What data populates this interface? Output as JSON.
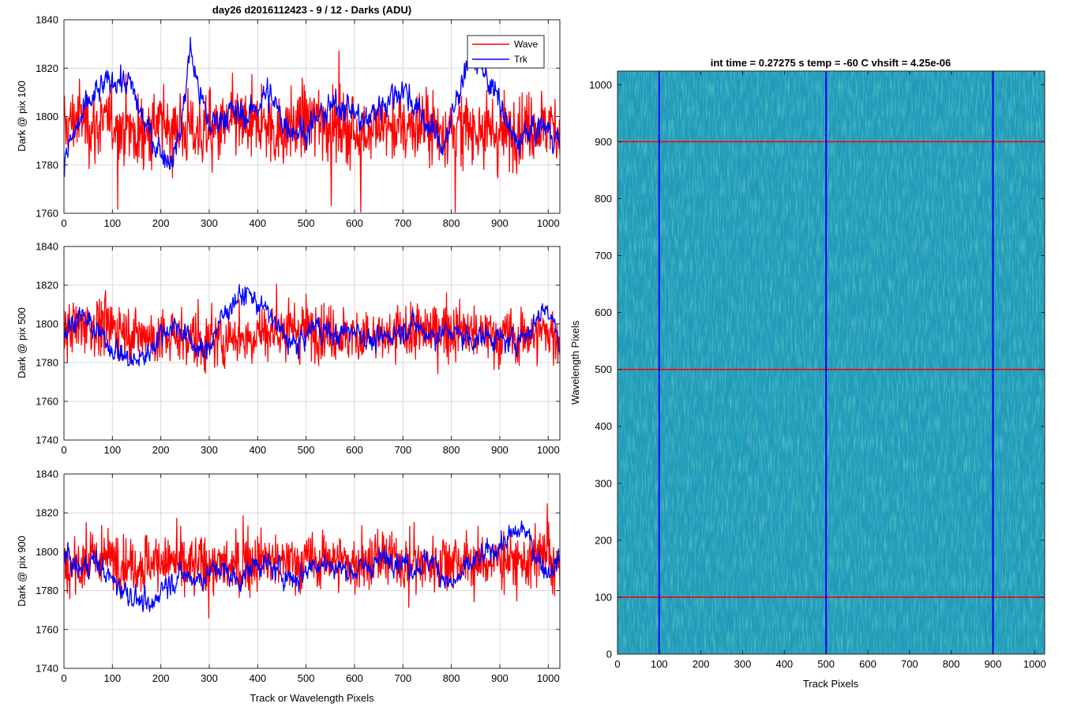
{
  "figure": {
    "title": "day26 d2016112423 - 9 / 12 - Darks (ADU)",
    "shared_xlabel": "Track or Wavelength Pixels",
    "image_title": "int time = 0.27275 s    temp = -60 C    vhsift = 4.25e-06",
    "image_xlabel": "Track Pixels",
    "image_ylabel": "Wavelength Pixels"
  },
  "legend": {
    "wave": "Wave",
    "trk": "Trk"
  },
  "colors": {
    "wave": "#ff0000",
    "trk": "#0000ff",
    "grid": "#d9d9d9",
    "axis": "#262626",
    "map_base": "#1f9bb8",
    "map_high": "#5fc27a",
    "map_low": "#2a78c8"
  },
  "chart_data": [
    {
      "type": "line",
      "ylabel": "Dark @ pix 100",
      "xlim": [
        0,
        1024
      ],
      "ylim": [
        1760,
        1840
      ],
      "xticks": [
        0,
        100,
        200,
        300,
        400,
        500,
        600,
        700,
        800,
        900,
        1000
      ],
      "yticks": [
        1760,
        1780,
        1800,
        1820,
        1840
      ],
      "grid": true,
      "legend": "top-right",
      "series": [
        {
          "name": "Wave",
          "color": "#ff0000",
          "x": [
            0,
            30,
            60,
            100,
            150,
            200,
            250,
            300,
            350,
            400,
            450,
            500,
            550,
            600,
            650,
            700,
            750,
            800,
            850,
            900,
            950,
            1000,
            1024
          ],
          "y": [
            1795,
            1800,
            1796,
            1798,
            1792,
            1797,
            1795,
            1793,
            1797,
            1796,
            1794,
            1799,
            1797,
            1793,
            1796,
            1795,
            1797,
            1794,
            1796,
            1793,
            1795,
            1797,
            1794
          ]
        },
        {
          "name": "Trk",
          "color": "#0000ff",
          "x": [
            0,
            20,
            50,
            80,
            110,
            140,
            160,
            190,
            220,
            240,
            260,
            280,
            300,
            340,
            380,
            420,
            460,
            500,
            540,
            580,
            620,
            660,
            700,
            740,
            780,
            800,
            820,
            840,
            870,
            900,
            930,
            960,
            990,
            1024
          ],
          "y": [
            1782,
            1792,
            1805,
            1812,
            1816,
            1812,
            1800,
            1788,
            1782,
            1792,
            1828,
            1810,
            1796,
            1802,
            1800,
            1810,
            1796,
            1794,
            1802,
            1806,
            1797,
            1806,
            1812,
            1800,
            1788,
            1797,
            1815,
            1826,
            1818,
            1805,
            1789,
            1793,
            1796,
            1790
          ]
        }
      ],
      "noise_amplitude": {
        "Wave": 9,
        "Trk": 4
      }
    },
    {
      "type": "line",
      "ylabel": "Dark @ pix 500",
      "xlim": [
        0,
        1024
      ],
      "ylim": [
        1740,
        1840
      ],
      "xticks": [
        0,
        100,
        200,
        300,
        400,
        500,
        600,
        700,
        800,
        900,
        1000
      ],
      "yticks": [
        1740,
        1760,
        1780,
        1800,
        1820,
        1840
      ],
      "grid": true,
      "series": [
        {
          "name": "Wave",
          "color": "#ff0000",
          "x": [
            0,
            50,
            100,
            150,
            200,
            250,
            300,
            350,
            400,
            450,
            500,
            550,
            600,
            650,
            700,
            750,
            800,
            850,
            900,
            950,
            1000,
            1024
          ],
          "y": [
            1797,
            1800,
            1798,
            1795,
            1792,
            1794,
            1790,
            1793,
            1795,
            1797,
            1798,
            1795,
            1794,
            1792,
            1795,
            1796,
            1797,
            1795,
            1793,
            1794,
            1796,
            1791
          ]
        },
        {
          "name": "Trk",
          "color": "#0000ff",
          "x": [
            0,
            30,
            60,
            100,
            140,
            170,
            200,
            230,
            260,
            290,
            320,
            350,
            380,
            420,
            450,
            480,
            520,
            560,
            600,
            640,
            680,
            720,
            760,
            800,
            840,
            880,
            920,
            960,
            990,
            1010,
            1024
          ],
          "y": [
            1795,
            1805,
            1798,
            1788,
            1780,
            1784,
            1795,
            1800,
            1792,
            1784,
            1800,
            1812,
            1816,
            1806,
            1795,
            1788,
            1800,
            1793,
            1798,
            1790,
            1795,
            1800,
            1794,
            1796,
            1792,
            1794,
            1790,
            1796,
            1808,
            1806,
            1785
          ]
        }
      ],
      "noise_amplitude": {
        "Wave": 9,
        "Trk": 4
      }
    },
    {
      "type": "line",
      "ylabel": "Dark @ pix 900",
      "xlabel": "Track or Wavelength Pixels",
      "xlim": [
        0,
        1024
      ],
      "ylim": [
        1740,
        1840
      ],
      "xticks": [
        0,
        100,
        200,
        300,
        400,
        500,
        600,
        700,
        800,
        900,
        1000
      ],
      "yticks": [
        1740,
        1760,
        1780,
        1800,
        1820,
        1840
      ],
      "grid": true,
      "series": [
        {
          "name": "Wave",
          "color": "#ff0000",
          "x": [
            0,
            50,
            100,
            150,
            200,
            250,
            300,
            350,
            400,
            450,
            500,
            550,
            600,
            650,
            700,
            750,
            800,
            850,
            900,
            950,
            1000,
            1024
          ],
          "y": [
            1792,
            1795,
            1797,
            1793,
            1796,
            1792,
            1795,
            1791,
            1796,
            1794,
            1795,
            1797,
            1793,
            1796,
            1795,
            1794,
            1797,
            1793,
            1796,
            1795,
            1797,
            1790
          ]
        },
        {
          "name": "Trk",
          "color": "#0000ff",
          "x": [
            0,
            30,
            60,
            100,
            140,
            180,
            200,
            240,
            280,
            320,
            360,
            400,
            440,
            480,
            520,
            560,
            600,
            640,
            680,
            720,
            760,
            800,
            840,
            880,
            920,
            950,
            980,
            1000,
            1024
          ],
          "y": [
            1800,
            1790,
            1796,
            1785,
            1778,
            1770,
            1782,
            1788,
            1786,
            1792,
            1785,
            1795,
            1790,
            1786,
            1795,
            1792,
            1790,
            1794,
            1798,
            1792,
            1796,
            1782,
            1793,
            1800,
            1807,
            1812,
            1796,
            1790,
            1796
          ]
        }
      ],
      "noise_amplitude": {
        "Wave": 9,
        "Trk": 4
      }
    },
    {
      "type": "heatmap",
      "title": "int time = 0.27275 s    temp = -60 C    vhsift = 4.25e-06",
      "xlabel": "Track Pixels",
      "ylabel": "Wavelength Pixels",
      "xlim": [
        0,
        1024
      ],
      "ylim": [
        0,
        1024
      ],
      "xticks": [
        0,
        100,
        200,
        300,
        400,
        500,
        600,
        700,
        800,
        900,
        1000
      ],
      "yticks": [
        0,
        100,
        200,
        300,
        400,
        500,
        600,
        700,
        800,
        900,
        1000
      ],
      "colormap": "parula",
      "vertical_markers": {
        "color": "#0000ff",
        "x": [
          100,
          500,
          900
        ]
      },
      "horizontal_markers": {
        "color": "#ff0000",
        "y": [
          100,
          500,
          900
        ]
      }
    }
  ]
}
